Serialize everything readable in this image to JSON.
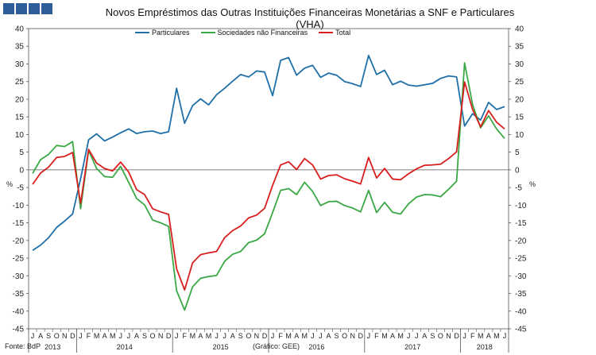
{
  "colors": {
    "particulares": "#1f6fa8",
    "sociedades": "#3aa845",
    "total": "#d81e1e",
    "logo": "#2f5d9a"
  },
  "footer": {
    "source": "Fonte: BdP",
    "graph": "(Gráfico: GEE)"
  },
  "chart_data": {
    "type": "line",
    "title": "Novos Empréstimos das Outras Instituições Financeiras Monetárias a SNF e Particulares",
    "subtitle": "(VHA)",
    "ylabel_left": "%",
    "ylabel_right": "%",
    "ylim": [
      -45,
      40
    ],
    "yticks": [
      40,
      35,
      30,
      25,
      20,
      15,
      10,
      5,
      0,
      -5,
      -10,
      -15,
      -20,
      -25,
      -30,
      -35,
      -40,
      -45
    ],
    "grid": false,
    "legend": "top",
    "x": [
      "2013-07",
      "2013-08",
      "2013-09",
      "2013-10",
      "2013-11",
      "2013-12",
      "2014-01",
      "2014-02",
      "2014-03",
      "2014-04",
      "2014-05",
      "2014-06",
      "2014-07",
      "2014-08",
      "2014-09",
      "2014-10",
      "2014-11",
      "2014-12",
      "2015-01",
      "2015-02",
      "2015-03",
      "2015-04",
      "2015-05",
      "2015-06",
      "2015-07",
      "2015-08",
      "2015-09",
      "2015-10",
      "2015-11",
      "2015-12",
      "2016-01",
      "2016-02",
      "2016-03",
      "2016-04",
      "2016-05",
      "2016-06",
      "2016-07",
      "2016-08",
      "2016-09",
      "2016-10",
      "2016-11",
      "2016-12",
      "2017-01",
      "2017-02",
      "2017-03",
      "2017-04",
      "2017-05",
      "2017-06",
      "2017-07",
      "2017-08",
      "2017-09",
      "2017-10",
      "2017-11",
      "2017-12",
      "2018-01",
      "2018-02",
      "2018-03",
      "2018-04",
      "2018-05",
      "2018-06"
    ],
    "month_labels": [
      "J",
      "A",
      "S",
      "O",
      "N",
      "D",
      "J",
      "F",
      "M",
      "A",
      "M",
      "J",
      "J",
      "A",
      "S",
      "O",
      "N",
      "D",
      "J",
      "F",
      "M",
      "A",
      "M",
      "J",
      "J",
      "A",
      "S",
      "O",
      "N",
      "D",
      "J",
      "F",
      "M",
      "A",
      "M",
      "J",
      "J",
      "A",
      "S",
      "O",
      "N",
      "D",
      "J",
      "F",
      "M",
      "A",
      "M",
      "J",
      "J",
      "A",
      "S",
      "O",
      "N",
      "D",
      "J",
      "F",
      "M",
      "A",
      "M",
      "J"
    ],
    "years": [
      {
        "label": "2013",
        "start": 0,
        "end": 5
      },
      {
        "label": "2014",
        "start": 6,
        "end": 17
      },
      {
        "label": "2015",
        "start": 18,
        "end": 29
      },
      {
        "label": "2016",
        "start": 30,
        "end": 41
      },
      {
        "label": "2017",
        "start": 42,
        "end": 53
      },
      {
        "label": "2018",
        "start": 54,
        "end": 59
      }
    ],
    "series": [
      {
        "name": "Particulares",
        "color": "#1f6fa8",
        "values": [
          -22.8,
          -21.3,
          -19.2,
          -16.3,
          -14.5,
          -12.5,
          -2.5,
          8.5,
          10.2,
          8.2,
          9.3,
          10.5,
          11.6,
          10.3,
          10.8,
          11.0,
          10.3,
          10.8,
          23.1,
          13.2,
          18.2,
          20.1,
          18.4,
          21.3,
          23.1,
          25.1,
          27.0,
          26.3,
          28.0,
          27.7,
          21.0,
          31.0,
          31.8,
          26.8,
          28.8,
          29.6,
          26.2,
          27.4,
          26.8,
          25.0,
          24.4,
          23.6,
          32.4,
          27.0,
          28.2,
          24.1,
          25.1,
          24.0,
          23.7,
          24.1,
          24.5,
          25.9,
          26.6,
          26.3,
          12.4,
          15.9,
          14.1,
          19.1,
          17.1,
          17.9
        ]
      },
      {
        "name": "Sociedades não Financeiras",
        "color": "#3aa845",
        "values": [
          -1.0,
          2.9,
          4.4,
          6.9,
          6.6,
          8.0,
          -11.0,
          5.5,
          0.4,
          -1.9,
          -2.1,
          1.0,
          -3.5,
          -8.1,
          -9.9,
          -14.2,
          -15.0,
          -16.0,
          -34.2,
          -39.7,
          -33.1,
          -30.7,
          -30.2,
          -29.9,
          -25.9,
          -23.9,
          -23.1,
          -20.6,
          -19.9,
          -18.1,
          -12.1,
          -5.8,
          -5.3,
          -7.0,
          -3.5,
          -6.1,
          -10.1,
          -9.0,
          -8.9,
          -10.1,
          -10.8,
          -11.9,
          -5.8,
          -12.1,
          -9.2,
          -12.0,
          -12.5,
          -9.6,
          -7.7,
          -7.0,
          -7.1,
          -7.6,
          -5.5,
          -3.2,
          30.3,
          18.5,
          11.9,
          15.3,
          11.6,
          8.9
        ]
      },
      {
        "name": "Total",
        "color": "#d81e1e",
        "values": [
          -4.1,
          -0.9,
          0.8,
          3.5,
          3.8,
          4.9,
          -9.5,
          5.8,
          1.9,
          0.4,
          -0.3,
          2.2,
          -0.6,
          -5.6,
          -7.0,
          -11.0,
          -11.9,
          -12.6,
          -28.0,
          -34.0,
          -26.3,
          -24.0,
          -23.5,
          -23.1,
          -19.2,
          -17.2,
          -15.9,
          -13.6,
          -12.8,
          -10.9,
          -4.4,
          1.4,
          2.3,
          0.1,
          3.2,
          1.4,
          -2.6,
          -1.6,
          -1.4,
          -2.5,
          -3.2,
          -4.0,
          3.5,
          -2.3,
          0.4,
          -2.6,
          -2.8,
          -1.1,
          0.3,
          1.3,
          1.4,
          1.6,
          3.2,
          5.1,
          24.9,
          17.1,
          12.2,
          16.8,
          13.5,
          11.6
        ]
      }
    ]
  }
}
